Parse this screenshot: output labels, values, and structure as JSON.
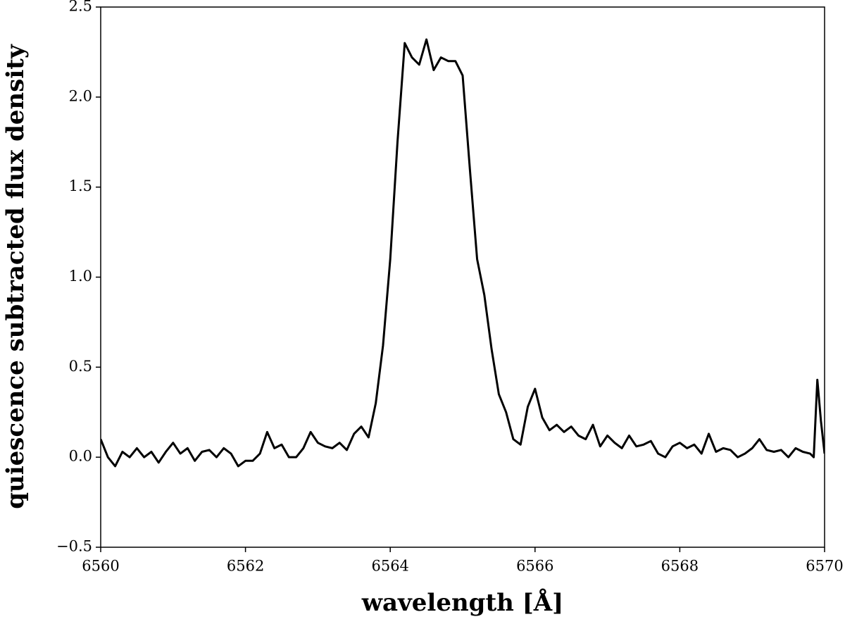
{
  "chart_data": {
    "type": "line",
    "xlabel": "wavelength [Å]",
    "ylabel": "quiescence subtracted flux density",
    "xlim": [
      6560,
      6570
    ],
    "ylim": [
      -0.5,
      2.5
    ],
    "xticks": [
      6560,
      6562,
      6564,
      6566,
      6568,
      6570
    ],
    "yticks": [
      {
        "value": -0.5,
        "label": "−0.5"
      },
      {
        "value": 0,
        "label": "0.0"
      },
      {
        "value": 0.5,
        "label": "0.5"
      },
      {
        "value": 1,
        "label": "1.0"
      },
      {
        "value": 1.5,
        "label": "1.5"
      },
      {
        "value": 2,
        "label": "2.0"
      },
      {
        "value": 2.5,
        "label": "2.5"
      }
    ],
    "series": [
      {
        "color": "#000000",
        "x": [
          6560.0,
          6560.1,
          6560.2,
          6560.3,
          6560.4,
          6560.5,
          6560.6,
          6560.7,
          6560.8,
          6560.9,
          6561.0,
          6561.1,
          6561.2,
          6561.3,
          6561.4,
          6561.5,
          6561.6,
          6561.7,
          6561.8,
          6561.9,
          6562.0,
          6562.1,
          6562.2,
          6562.3,
          6562.4,
          6562.5,
          6562.6,
          6562.7,
          6562.8,
          6562.9,
          6563.0,
          6563.1,
          6563.2,
          6563.3,
          6563.4,
          6563.5,
          6563.6,
          6563.7,
          6563.8,
          6563.9,
          6564.0,
          6564.1,
          6564.2,
          6564.3,
          6564.4,
          6564.5,
          6564.6,
          6564.7,
          6564.8,
          6564.9,
          6565.0,
          6565.1,
          6565.2,
          6565.3,
          6565.4,
          6565.5,
          6565.6,
          6565.7,
          6565.8,
          6565.9,
          6566.0,
          6566.1,
          6566.2,
          6566.3,
          6566.4,
          6566.5,
          6566.6,
          6566.7,
          6566.8,
          6566.9,
          6567.0,
          6567.1,
          6567.2,
          6567.3,
          6567.4,
          6567.5,
          6567.6,
          6567.7,
          6567.8,
          6567.9,
          6568.0,
          6568.1,
          6568.2,
          6568.3,
          6568.4,
          6568.5,
          6568.6,
          6568.7,
          6568.8,
          6568.9,
          6569.0,
          6569.1,
          6569.2,
          6569.3,
          6569.4,
          6569.5,
          6569.6,
          6569.7,
          6569.8,
          6569.85,
          6569.9,
          6569.95,
          6570.0
        ],
        "values": [
          0.1,
          0.0,
          -0.05,
          0.03,
          0.0,
          0.05,
          0.0,
          0.03,
          -0.03,
          0.03,
          0.08,
          0.02,
          0.05,
          -0.02,
          0.03,
          0.04,
          0.0,
          0.05,
          0.02,
          -0.05,
          -0.02,
          -0.02,
          0.02,
          0.14,
          0.05,
          0.07,
          0.0,
          0.0,
          0.05,
          0.14,
          0.08,
          0.06,
          0.05,
          0.08,
          0.04,
          0.13,
          0.17,
          0.11,
          0.3,
          0.62,
          1.1,
          1.75,
          2.3,
          2.22,
          2.18,
          2.32,
          2.15,
          2.22,
          2.2,
          2.2,
          2.12,
          1.6,
          1.1,
          0.9,
          0.6,
          0.35,
          0.25,
          0.1,
          0.07,
          0.28,
          0.38,
          0.22,
          0.15,
          0.18,
          0.14,
          0.17,
          0.12,
          0.1,
          0.18,
          0.06,
          0.12,
          0.08,
          0.05,
          0.12,
          0.06,
          0.07,
          0.09,
          0.02,
          0.0,
          0.06,
          0.08,
          0.05,
          0.07,
          0.02,
          0.13,
          0.03,
          0.05,
          0.04,
          0.0,
          0.02,
          0.05,
          0.1,
          0.04,
          0.03,
          0.04,
          0.0,
          0.05,
          0.03,
          0.02,
          0.0,
          0.43,
          0.2,
          0.02
        ]
      }
    ]
  }
}
